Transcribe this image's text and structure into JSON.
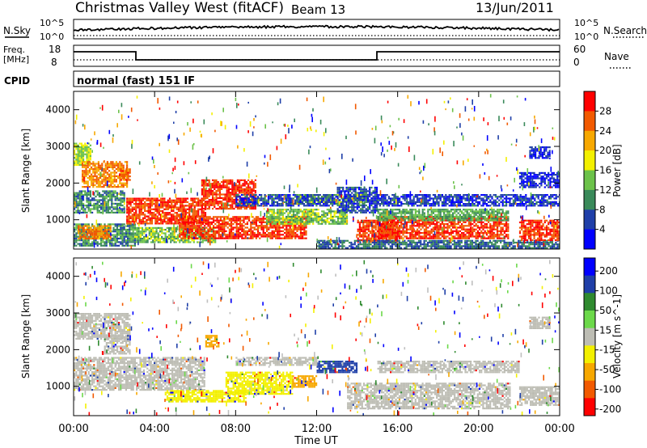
{
  "header": {
    "station": "Christmas Valley West (fitACF)",
    "beam": "Beam 13",
    "date": "13/Jun/2011"
  },
  "noise_panel": {
    "left_label": "N.Sky",
    "right_label": "N.Search",
    "left_ticks": [
      "10^5",
      "10^0"
    ],
    "right_ticks": [
      "10^5",
      "10^0"
    ]
  },
  "freq_panel": {
    "left_label_1": "Freq.",
    "left_label_2": "[MHz]",
    "left_ticks": [
      "18",
      "8"
    ],
    "right_label": "Nave",
    "right_ticks": [
      "60",
      "0"
    ]
  },
  "cpid": {
    "label": "CPID",
    "value": "normal (fast) 151 IF"
  },
  "colors": {
    "power_scale": [
      "#0000ff",
      "#1f3fa8",
      "#3a8a5a",
      "#6cc24a",
      "#f3f000",
      "#f7a800",
      "#f25a00",
      "#ff0000"
    ],
    "velocity_scale": [
      "#0000ff",
      "#1f3fa8",
      "#2f8a2f",
      "#6cd94a",
      "#bfbfbf",
      "#f3f000",
      "#f7a800",
      "#f25a00",
      "#ff0000"
    ],
    "ground_scatter": "#bdbdb4"
  },
  "chart_data": [
    {
      "type": "heatmap",
      "panel": "power",
      "x_ticks": [
        "00:00",
        "04:00",
        "08:00",
        "12:00",
        "16:00",
        "20:00",
        "00:00"
      ],
      "xlim_hours": [
        0,
        24
      ],
      "ylabel": "Slant Range [km]",
      "ylim": [
        200,
        4500
      ],
      "y_ticks": [
        1000,
        2000,
        3000,
        4000
      ],
      "colorbar": {
        "label": "Power [dB]",
        "ticks": [
          "4",
          "8",
          "12",
          "16",
          "20",
          "24",
          "28"
        ]
      },
      "regions": [
        {
          "t0": 0.0,
          "t1": 0.8,
          "r0": 2500,
          "r1": 3100,
          "level": 16
        },
        {
          "t0": 0.4,
          "t1": 2.6,
          "r0": 1900,
          "r1": 2600,
          "level": 24
        },
        {
          "t0": 2.3,
          "t1": 2.8,
          "r0": 2100,
          "r1": 2400,
          "level": 26
        },
        {
          "t0": 0.0,
          "t1": 2.5,
          "r0": 1200,
          "r1": 1800,
          "level": 10
        },
        {
          "t0": 0.0,
          "t1": 3.0,
          "r0": 300,
          "r1": 900,
          "level": 10
        },
        {
          "t0": 0.2,
          "t1": 1.8,
          "r0": 500,
          "r1": 850,
          "level": 24
        },
        {
          "t0": 2.6,
          "t1": 6.5,
          "r0": 900,
          "r1": 1600,
          "level": 28
        },
        {
          "t0": 6.3,
          "t1": 9.0,
          "r0": 1300,
          "r1": 2100,
          "level": 28
        },
        {
          "t0": 3.0,
          "t1": 7.0,
          "r0": 400,
          "r1": 800,
          "level": 14
        },
        {
          "t0": 5.2,
          "t1": 11.5,
          "r0": 500,
          "r1": 1100,
          "level": 28
        },
        {
          "t0": 9.5,
          "t1": 13.5,
          "r0": 900,
          "r1": 1300,
          "level": 14
        },
        {
          "t0": 11.0,
          "t1": 14.5,
          "r0": 1500,
          "r1": 1700,
          "level": 14
        },
        {
          "t0": 8.0,
          "t1": 13.0,
          "r0": 1400,
          "r1": 1700,
          "level": 6
        },
        {
          "t0": 13.0,
          "t1": 15.0,
          "r0": 1200,
          "r1": 1900,
          "level": 6
        },
        {
          "t0": 14.0,
          "t1": 16.0,
          "r0": 400,
          "r1": 1000,
          "level": 28
        },
        {
          "t0": 15.0,
          "t1": 21.5,
          "r0": 500,
          "r1": 1100,
          "level": 28
        },
        {
          "t0": 15.0,
          "t1": 21.5,
          "r0": 1000,
          "r1": 1300,
          "level": 12
        },
        {
          "t0": 15.0,
          "t1": 24.0,
          "r0": 1400,
          "r1": 1700,
          "level": 5
        },
        {
          "t0": 12.0,
          "t1": 24.0,
          "r0": 250,
          "r1": 450,
          "level": 8
        },
        {
          "t0": 22.0,
          "t1": 24.0,
          "r0": 450,
          "r1": 1000,
          "level": 28
        },
        {
          "t0": 22.0,
          "t1": 24.0,
          "r0": 1900,
          "r1": 2300,
          "level": 4
        },
        {
          "t0": 22.5,
          "t1": 23.5,
          "r0": 2700,
          "r1": 3000,
          "level": 4
        }
      ]
    },
    {
      "type": "heatmap",
      "panel": "velocity",
      "x_ticks": [
        "00:00",
        "04:00",
        "08:00",
        "12:00",
        "16:00",
        "20:00",
        "00:00"
      ],
      "xlim_hours": [
        0,
        24
      ],
      "xlabel": "Time UT",
      "ylabel": "Slant Range [km]",
      "ylim": [
        200,
        4500
      ],
      "y_ticks": [
        1000,
        2000,
        3000,
        4000
      ],
      "colorbar": {
        "label": "Velocity [m s^-1]",
        "ticks": [
          "200",
          "100",
          "50",
          "15",
          "-15",
          "-50",
          "-100",
          "-200"
        ]
      },
      "regions": [
        {
          "t0": 0.0,
          "t1": 2.8,
          "r0": 2300,
          "r1": 3000,
          "velocity": 0
        },
        {
          "t0": 0.0,
          "t1": 6.5,
          "r0": 900,
          "r1": 1800,
          "velocity": 0
        },
        {
          "t0": 1.5,
          "t1": 2.8,
          "r0": 1900,
          "r1": 2400,
          "velocity": 0
        },
        {
          "t0": 4.5,
          "t1": 8.5,
          "r0": 600,
          "r1": 900,
          "velocity": -80
        },
        {
          "t0": 7.5,
          "t1": 10.8,
          "r0": 800,
          "r1": 1400,
          "velocity": -80
        },
        {
          "t0": 10.8,
          "t1": 12.0,
          "r0": 1000,
          "r1": 1300,
          "velocity": -150
        },
        {
          "t0": 12.0,
          "t1": 14.0,
          "r0": 1400,
          "r1": 1700,
          "velocity": 60
        },
        {
          "t0": 8.0,
          "t1": 12.0,
          "r0": 1600,
          "r1": 1800,
          "velocity": 0
        },
        {
          "t0": 13.5,
          "t1": 21.5,
          "r0": 400,
          "r1": 1100,
          "velocity": 0
        },
        {
          "t0": 15.0,
          "t1": 22.0,
          "r0": 1400,
          "r1": 1700,
          "velocity": 0
        },
        {
          "t0": 22.0,
          "t1": 24.0,
          "r0": 500,
          "r1": 1000,
          "velocity": 0
        },
        {
          "t0": 22.5,
          "t1": 23.5,
          "r0": 2600,
          "r1": 2900,
          "velocity": 0
        },
        {
          "t0": 6.5,
          "t1": 7.2,
          "r0": 2100,
          "r1": 2400,
          "velocity": -180
        }
      ]
    }
  ]
}
